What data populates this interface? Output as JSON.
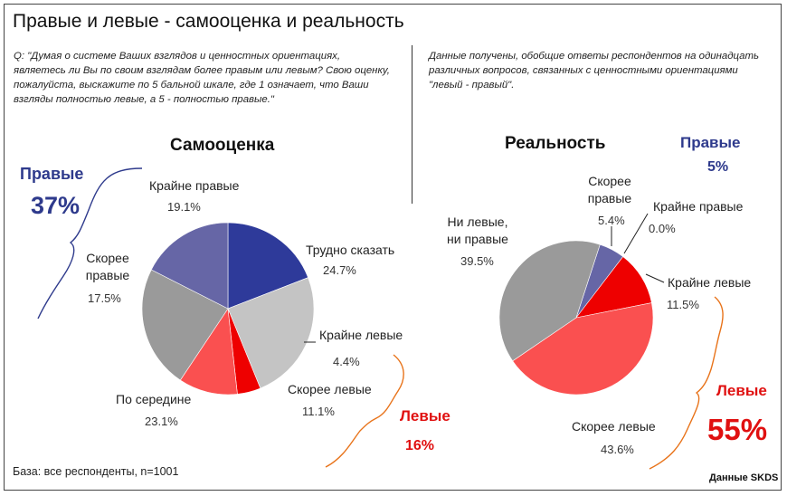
{
  "title": "Правые и левые - самооценка и реальность",
  "question": "Q: \"Думая о системе Ваших взглядов и ценностных ориентациях, являетесь ли Вы по своим взглядам более правым или левым? Свою оценку, пожалуйста, выскажите по 5 бальной шкале, где 1 означает, что Ваши взгляды полностью левые, а 5 - полностью правые.\"",
  "note": "Данные получены, обобщие ответы респондентов на одинадцать различных вопросов, связанных с ценностными ориентациями \"левый - правый\".",
  "left": {
    "heading": "Самооценка",
    "right_group_label": "Правые",
    "right_group_value": "37%",
    "left_group_label": "Левые",
    "left_group_value": "16%",
    "labels": {
      "extreme_right": "Крайне правые",
      "extreme_right_pct": "19.1%",
      "hard_to_say": "Трудно сказать",
      "hard_to_say_pct": "24.7%",
      "extreme_left": "Крайне левые",
      "extreme_left_pct": "4.4%",
      "rather_left": "Скорее левые",
      "rather_left_pct": "11.1%",
      "middle": "По середине",
      "middle_pct": "23.1%",
      "rather_right_1": "Скорее",
      "rather_right_2": "правые",
      "rather_right_pct": "17.5%"
    }
  },
  "right": {
    "heading": "Реальность",
    "right_group_label": "Правые",
    "right_group_value": "5%",
    "left_group_label": "Левые",
    "left_group_value": "55%",
    "labels": {
      "rather_right_1": "Скорее",
      "rather_right_2": "правые",
      "rather_right_pct": "5.4%",
      "extreme_right": "Крайне правые",
      "extreme_right_pct": "0.0%",
      "extreme_left": "Крайне левые",
      "extreme_left_pct": "11.5%",
      "rather_left": "Скорее левые",
      "rather_left_pct": "43.6%",
      "neither_1": "Ни левые,",
      "neither_2": "ни правые",
      "neither_pct": "39.5%"
    }
  },
  "base": "База: все респонденты, n=1001",
  "source": "Данные SKDS",
  "chart_data": [
    {
      "type": "pie",
      "title": "Самооценка",
      "slices": [
        {
          "label": "Крайне правые",
          "value": 19.1,
          "color": "#2e3a9a"
        },
        {
          "label": "Трудно сказать",
          "value": 24.7,
          "color": "#c4c4c4"
        },
        {
          "label": "Крайне левые",
          "value": 4.4,
          "color": "#ee0000"
        },
        {
          "label": "Скорее левые",
          "value": 11.1,
          "color": "#fa5050"
        },
        {
          "label": "По середине",
          "value": 23.1,
          "color": "#9a9a9a"
        },
        {
          "label": "Скорее правые",
          "value": 17.5,
          "color": "#6666a6"
        }
      ]
    },
    {
      "type": "pie",
      "title": "Реальность",
      "slices": [
        {
          "label": "Скорее правые",
          "value": 5.4,
          "color": "#6666a6"
        },
        {
          "label": "Крайне правые",
          "value": 0.0,
          "color": "#2e3a9a"
        },
        {
          "label": "Крайне левые",
          "value": 11.5,
          "color": "#ee0000"
        },
        {
          "label": "Скорее левые",
          "value": 43.6,
          "color": "#fa5050"
        },
        {
          "label": "Ни левые, ни правые",
          "value": 39.5,
          "color": "#9a9a9a"
        }
      ]
    }
  ]
}
